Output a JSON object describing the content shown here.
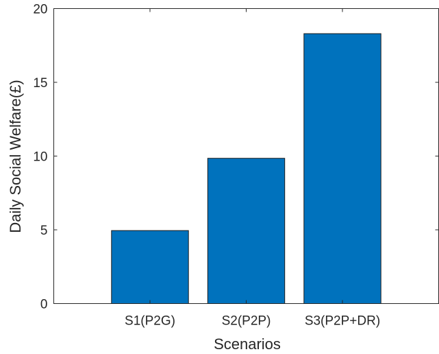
{
  "chart_data": {
    "type": "bar",
    "title": "",
    "xlabel": "Scenarios",
    "ylabel": "Daily Social Welfare(£)",
    "categories": [
      "S1(P2G)",
      "S2(P2P)",
      "S3(P2P+DR)"
    ],
    "values": [
      4.95,
      9.85,
      18.3
    ],
    "ylim": [
      0,
      20
    ],
    "yticks": [
      0,
      5,
      10,
      15,
      20
    ],
    "xlim": [
      0,
      4
    ],
    "grid": false,
    "legend": "none",
    "bar_color": "#0072BD"
  }
}
